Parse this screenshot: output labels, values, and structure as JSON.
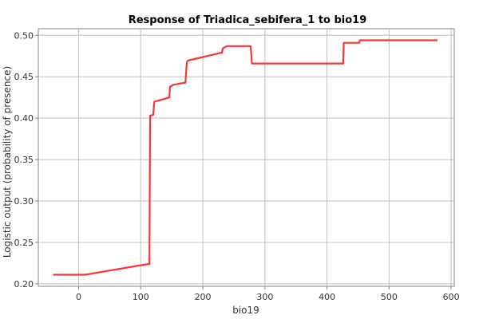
{
  "chart_data": {
    "type": "line",
    "title": "Response of Triadica_sebifera_1 to bio19",
    "xlabel": "bio19",
    "ylabel": "Logistic output (probability of presence)",
    "xlim": [
      -65,
      605
    ],
    "ylim": [
      0.197,
      0.508
    ],
    "xticks": [
      0,
      100,
      200,
      300,
      400,
      500,
      600
    ],
    "yticks": [
      0.2,
      0.25,
      0.3,
      0.35,
      0.4,
      0.45,
      0.5
    ],
    "grid": true,
    "series_color": "#ff3333",
    "series": [
      {
        "x": [
          -40,
          10,
          112,
          114,
          115,
          120,
          121,
          122,
          127,
          146,
          147,
          150,
          151,
          172,
          174,
          175,
          178,
          230,
          231,
          232,
          236,
          240,
          277,
          278,
          279,
          282,
          426,
          427,
          430,
          452,
          453,
          457,
          577
        ],
        "y": [
          0.211,
          0.211,
          0.224,
          0.224,
          0.403,
          0.404,
          0.413,
          0.42,
          0.421,
          0.425,
          0.438,
          0.439,
          0.44,
          0.443,
          0.465,
          0.469,
          0.47,
          0.479,
          0.479,
          0.484,
          0.486,
          0.487,
          0.487,
          0.478,
          0.466,
          0.466,
          0.466,
          0.491,
          0.491,
          0.491,
          0.494,
          0.494,
          0.494
        ]
      }
    ]
  }
}
